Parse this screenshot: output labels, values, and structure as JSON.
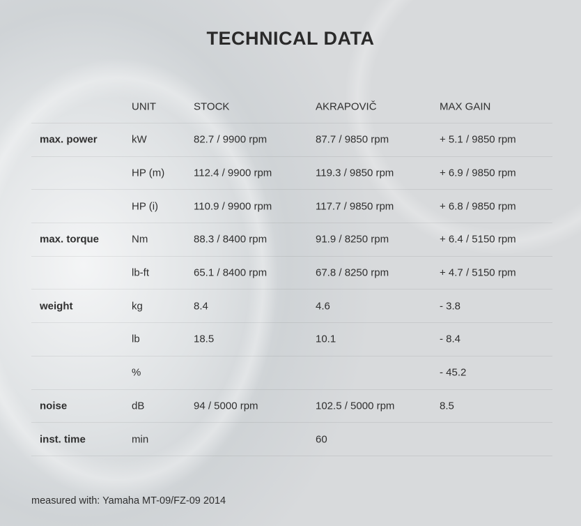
{
  "title": "TECHNICAL DATA",
  "headers": [
    "",
    "UNIT",
    "STOCK",
    "AKRAPOVIČ",
    "MAX GAIN"
  ],
  "rows": [
    [
      "max. power",
      "kW",
      "82.7 / 9900 rpm",
      "87.7 / 9850 rpm",
      "+ 5.1 / 9850 rpm"
    ],
    [
      "",
      "HP (m)",
      "112.4 / 9900 rpm",
      "119.3 / 9850 rpm",
      "+ 6.9 / 9850 rpm"
    ],
    [
      "",
      "HP (i)",
      "110.9 / 9900 rpm",
      "117.7 / 9850 rpm",
      "+ 6.8 / 9850 rpm"
    ],
    [
      "max. torque",
      "Nm",
      "88.3 / 8400 rpm",
      "91.9 / 8250 rpm",
      "+ 6.4 / 5150 rpm"
    ],
    [
      "",
      "lb-ft",
      "65.1 / 8400 rpm",
      "67.8 / 8250 rpm",
      "+ 4.7 / 5150 rpm"
    ],
    [
      "weight",
      "kg",
      "8.4",
      "4.6",
      "- 3.8"
    ],
    [
      "",
      "lb",
      "18.5",
      "10.1",
      "- 8.4"
    ],
    [
      "",
      "%",
      "",
      "",
      "- 45.2"
    ],
    [
      "noise",
      "dB",
      "94 / 5000 rpm",
      "102.5 / 5000 rpm",
      "8.5"
    ],
    [
      "inst. time",
      "min",
      "",
      "60",
      ""
    ]
  ],
  "footer": "measured with: Yamaha MT-09/FZ-09 2014"
}
